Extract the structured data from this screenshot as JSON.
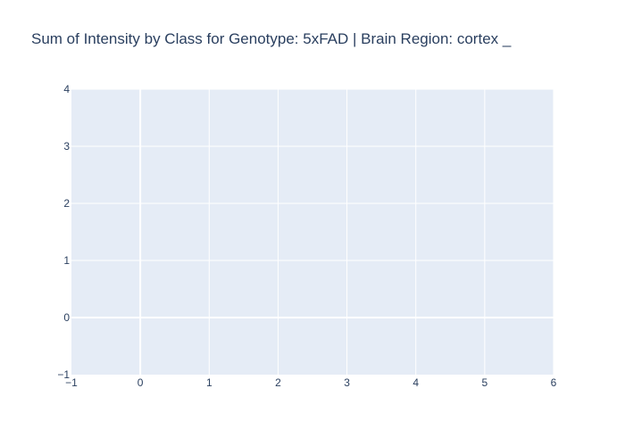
{
  "chart_data": {
    "type": "bar",
    "title": "Sum of Intensity by Class for Genotype: 5xFAD | Brain Region: cortex _",
    "xlabel": "",
    "ylabel": "",
    "xlim": [
      -1,
      6
    ],
    "ylim": [
      -1,
      4
    ],
    "x_ticks": [
      "−1",
      "0",
      "1",
      "2",
      "3",
      "4",
      "5",
      "6"
    ],
    "x_tick_values": [
      -1,
      0,
      1,
      2,
      3,
      4,
      5,
      6
    ],
    "y_ticks": [
      "−1",
      "0",
      "1",
      "2",
      "3",
      "4"
    ],
    "y_tick_values": [
      -1,
      0,
      1,
      2,
      3,
      4
    ],
    "series": [],
    "grid": true,
    "colors": {
      "plot_bg": "#e5ecf6",
      "grid": "#ffffff",
      "text": "#2a3f5f"
    }
  }
}
